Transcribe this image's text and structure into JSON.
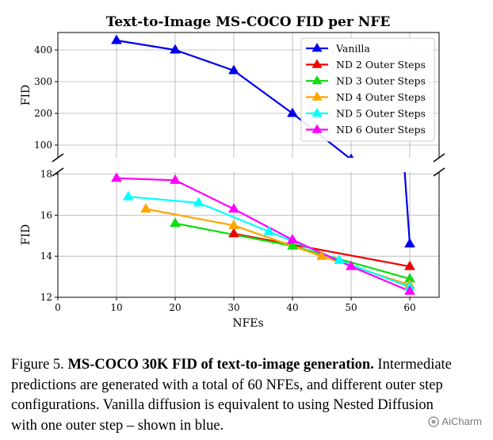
{
  "chart_data": {
    "type": "line",
    "title": "Text-to-Image MS-COCO FID per NFE",
    "xlabel": "NFEs",
    "ylabel": "FID",
    "xlim": [
      0,
      65
    ],
    "xticks": [
      "0",
      "10",
      "20",
      "30",
      "40",
      "50",
      "60"
    ],
    "top_panel": {
      "ylim": [
        60,
        455
      ],
      "yticks": [
        "100",
        "200",
        "300",
        "400"
      ]
    },
    "bottom_panel": {
      "ylim": [
        12,
        18.1
      ],
      "yticks": [
        "12",
        "14",
        "16",
        "18"
      ]
    },
    "grid": true,
    "legend_position": "upper-right",
    "series": [
      {
        "name": "Vanilla",
        "color": "#0000ee",
        "x": [
          10,
          20,
          30,
          40,
          50,
          60
        ],
        "y": [
          430,
          400,
          335,
          200,
          55,
          14.6
        ]
      },
      {
        "name": "ND 2 Outer Steps",
        "color": "#ee0000",
        "x": [
          30,
          60
        ],
        "y": [
          15.1,
          13.5
        ]
      },
      {
        "name": "ND 3 Outer Steps",
        "color": "#11dd11",
        "x": [
          20,
          40,
          60
        ],
        "y": [
          15.6,
          14.5,
          12.9
        ]
      },
      {
        "name": "ND 4 Outer Steps",
        "color": "#ffa500",
        "x": [
          15,
          30,
          45,
          60
        ],
        "y": [
          16.3,
          15.5,
          14.0,
          12.6
        ]
      },
      {
        "name": "ND 5 Outer Steps",
        "color": "#00ffff",
        "x": [
          12,
          24,
          36,
          48,
          60
        ],
        "y": [
          16.9,
          16.6,
          15.2,
          13.8,
          12.5
        ]
      },
      {
        "name": "ND 6 Outer Steps",
        "color": "#ff00ff",
        "x": [
          10,
          20,
          30,
          40,
          50,
          60
        ],
        "y": [
          17.8,
          17.7,
          16.3,
          14.8,
          13.5,
          12.3
        ]
      }
    ]
  },
  "caption": {
    "label": "Figure 5.",
    "bold": "MS-COCO 30K FID of text-to-image generation.",
    "text": "Intermediate predictions are generated with a total of 60 NFEs, and different outer step configurations. Vanilla diffusion is equivalent to using Nested Diffusion with one outer step – shown in blue."
  },
  "watermark": "AiCharm"
}
